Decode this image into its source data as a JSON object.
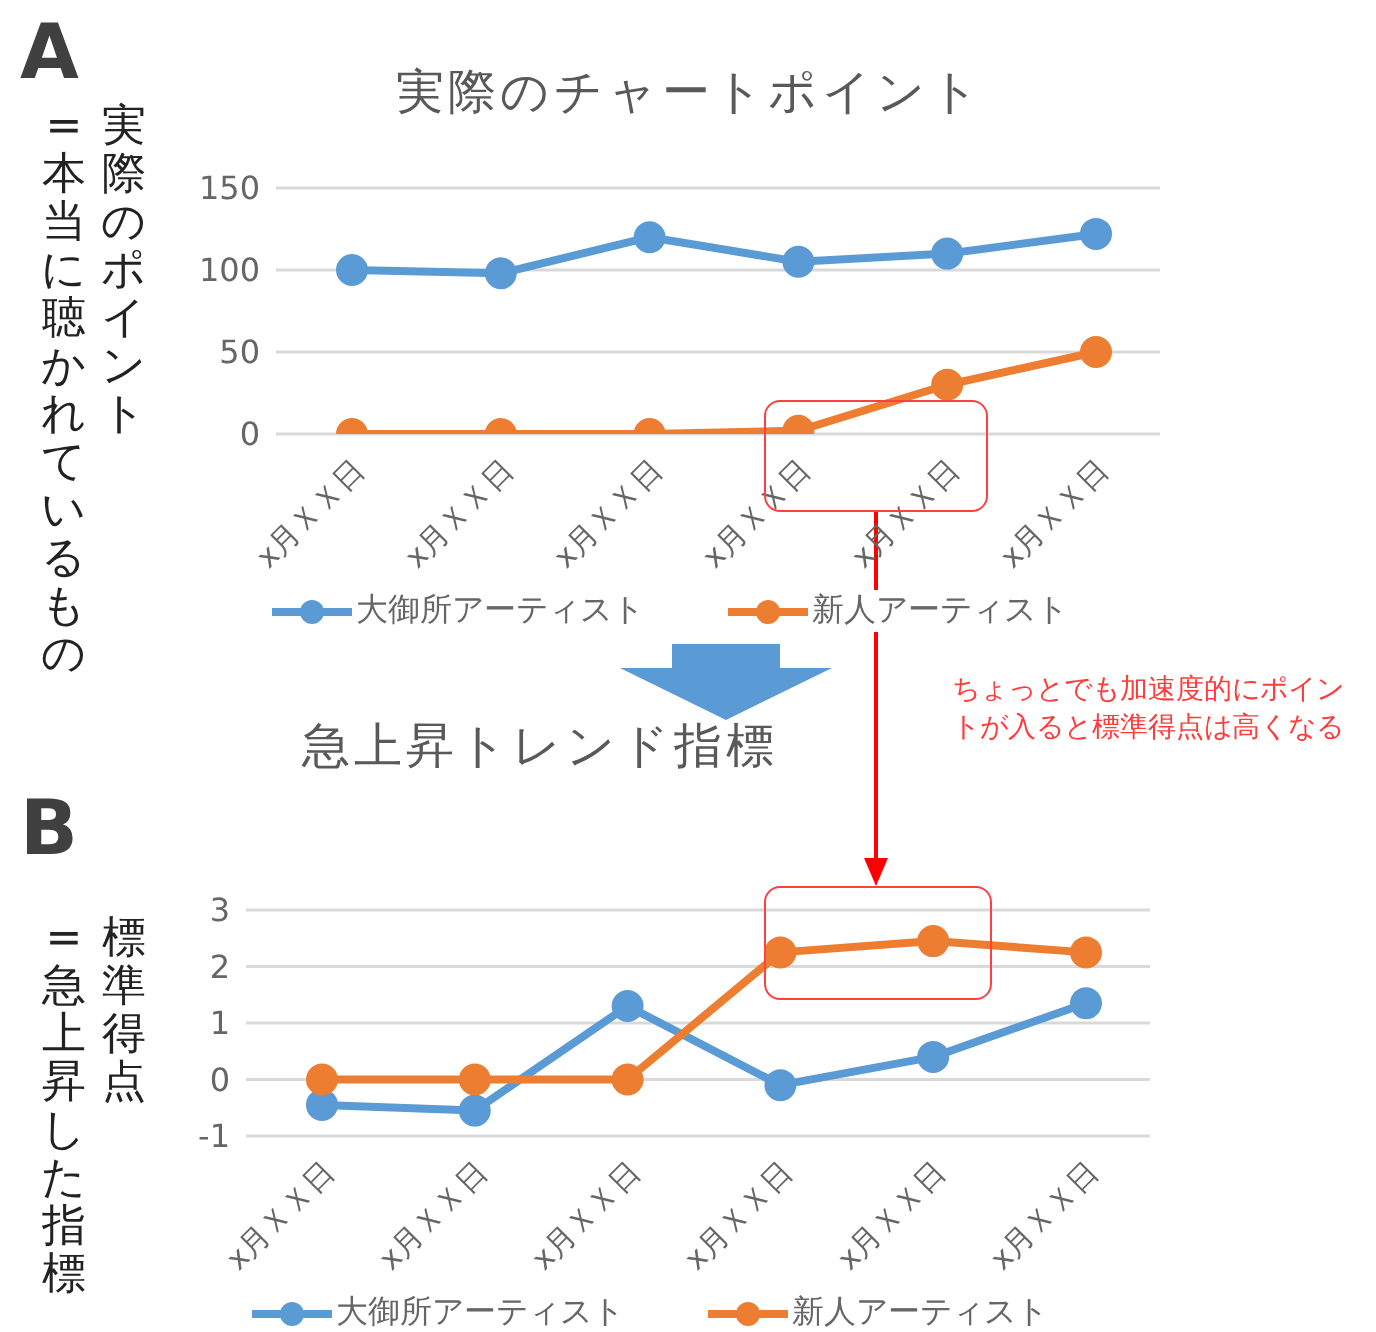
{
  "chart_data": [
    {
      "type": "line",
      "title": "実際のチャートポイント",
      "ylabel": "実際のポイント\n=本当に聴かれているもの",
      "annotations": [
        "A"
      ],
      "categories": [
        "x月ＸＸ日",
        "x月ＸＸ日",
        "x月ＸＸ日",
        "x月ＸＸ日",
        "x月ＸＸ日",
        "x月ＸＸ日"
      ],
      "series": [
        {
          "name": "大御所アーティスト",
          "color": "#5b9bd5",
          "values": [
            100,
            98,
            120,
            105,
            110,
            122
          ]
        },
        {
          "name": "新人アーティスト",
          "color": "#ed7d31",
          "values": [
            0,
            0,
            0,
            2,
            30,
            50
          ]
        }
      ],
      "ylim": [
        0,
        150
      ],
      "yticks": [
        0,
        50,
        100,
        150
      ],
      "grid": "y",
      "legend": "bottom",
      "marker": "circle",
      "line_style": "solid"
    },
    {
      "type": "line",
      "title": "急上昇トレンド指標",
      "ylabel": "標準得点\n=急上昇した指標",
      "annotations": [
        "B",
        "ちょっとでも加速度的にポイントが入ると標準得点は高くなる"
      ],
      "categories": [
        "x月ＸＸ日",
        "x月ＸＸ日",
        "x月ＸＸ日",
        "x月ＸＸ日",
        "x月ＸＸ日",
        "x月ＸＸ日"
      ],
      "series": [
        {
          "name": "大御所アーティスト",
          "color": "#5b9bd5",
          "values": [
            -0.45,
            -0.55,
            1.3,
            -0.1,
            0.4,
            1.35
          ]
        },
        {
          "name": "新人アーティスト",
          "color": "#ed7d31",
          "values": [
            0,
            0,
            0,
            2.25,
            2.45,
            2.25
          ]
        }
      ],
      "ylim": [
        -1,
        3
      ],
      "yticks": [
        -1,
        0,
        1,
        2,
        3
      ],
      "grid": "y",
      "legend": "bottom",
      "marker": "circle",
      "line_style": "solid"
    }
  ]
}
